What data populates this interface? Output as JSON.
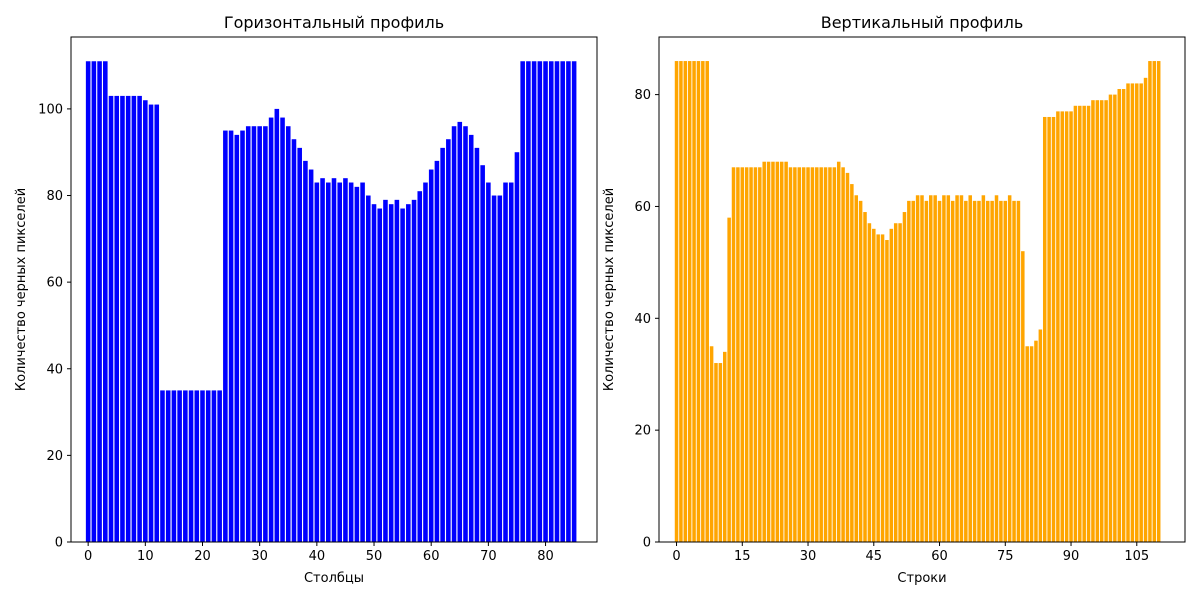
{
  "chart_data": [
    {
      "type": "bar",
      "title": "Горизонтальный профиль",
      "xlabel": "Столбцы",
      "ylabel": "Количество черных пикселей",
      "color": "#0000ff",
      "xlim": [
        -3,
        89
      ],
      "ylim": [
        0,
        116.6
      ],
      "xticks": [
        0,
        10,
        20,
        30,
        40,
        50,
        60,
        70,
        80
      ],
      "yticks": [
        0,
        20,
        40,
        60,
        80,
        100
      ],
      "grid": false,
      "x_start": 0,
      "values": [
        111,
        111,
        111,
        111,
        103,
        103,
        103,
        103,
        103,
        103,
        102,
        101,
        101,
        35,
        35,
        35,
        35,
        35,
        35,
        35,
        35,
        35,
        35,
        35,
        95,
        95,
        94,
        95,
        96,
        96,
        96,
        96,
        98,
        100,
        98,
        96,
        93,
        91,
        88,
        86,
        83,
        84,
        83,
        84,
        83,
        84,
        83,
        82,
        83,
        80,
        78,
        77,
        79,
        78,
        79,
        77,
        78,
        79,
        81,
        83,
        86,
        88,
        91,
        93,
        96,
        97,
        96,
        94,
        91,
        87,
        83,
        80,
        80,
        83,
        83,
        90,
        111,
        111,
        111,
        111,
        111,
        111,
        111,
        111,
        111,
        111
      ]
    },
    {
      "type": "bar",
      "title": "Вертикальный профиль",
      "xlabel": "Строки",
      "ylabel": "Количество черных пикселей",
      "color": "#ffa500",
      "xlim": [
        -4,
        116
      ],
      "ylim": [
        0,
        90.3
      ],
      "xticks": [
        0,
        15,
        30,
        45,
        60,
        75,
        90,
        105
      ],
      "yticks": [
        0,
        20,
        40,
        60,
        80
      ],
      "grid": false,
      "x_start": 0,
      "values": [
        86,
        86,
        86,
        86,
        86,
        86,
        86,
        86,
        35,
        32,
        32,
        34,
        58,
        67,
        67,
        67,
        67,
        67,
        67,
        67,
        68,
        68,
        68,
        68,
        68,
        68,
        67,
        67,
        67,
        67,
        67,
        67,
        67,
        67,
        67,
        67,
        67,
        68,
        67,
        66,
        64,
        62,
        61,
        59,
        57,
        56,
        55,
        55,
        54,
        56,
        57,
        57,
        59,
        61,
        61,
        62,
        62,
        61,
        62,
        62,
        61,
        62,
        62,
        61,
        62,
        62,
        61,
        62,
        61,
        61,
        62,
        61,
        61,
        62,
        61,
        61,
        62,
        61,
        61,
        52,
        35,
        35,
        36,
        38,
        76,
        76,
        76,
        77,
        77,
        77,
        77,
        78,
        78,
        78,
        78,
        79,
        79,
        79,
        79,
        80,
        80,
        81,
        81,
        82,
        82,
        82,
        82,
        83,
        86,
        86,
        86
      ]
    }
  ]
}
